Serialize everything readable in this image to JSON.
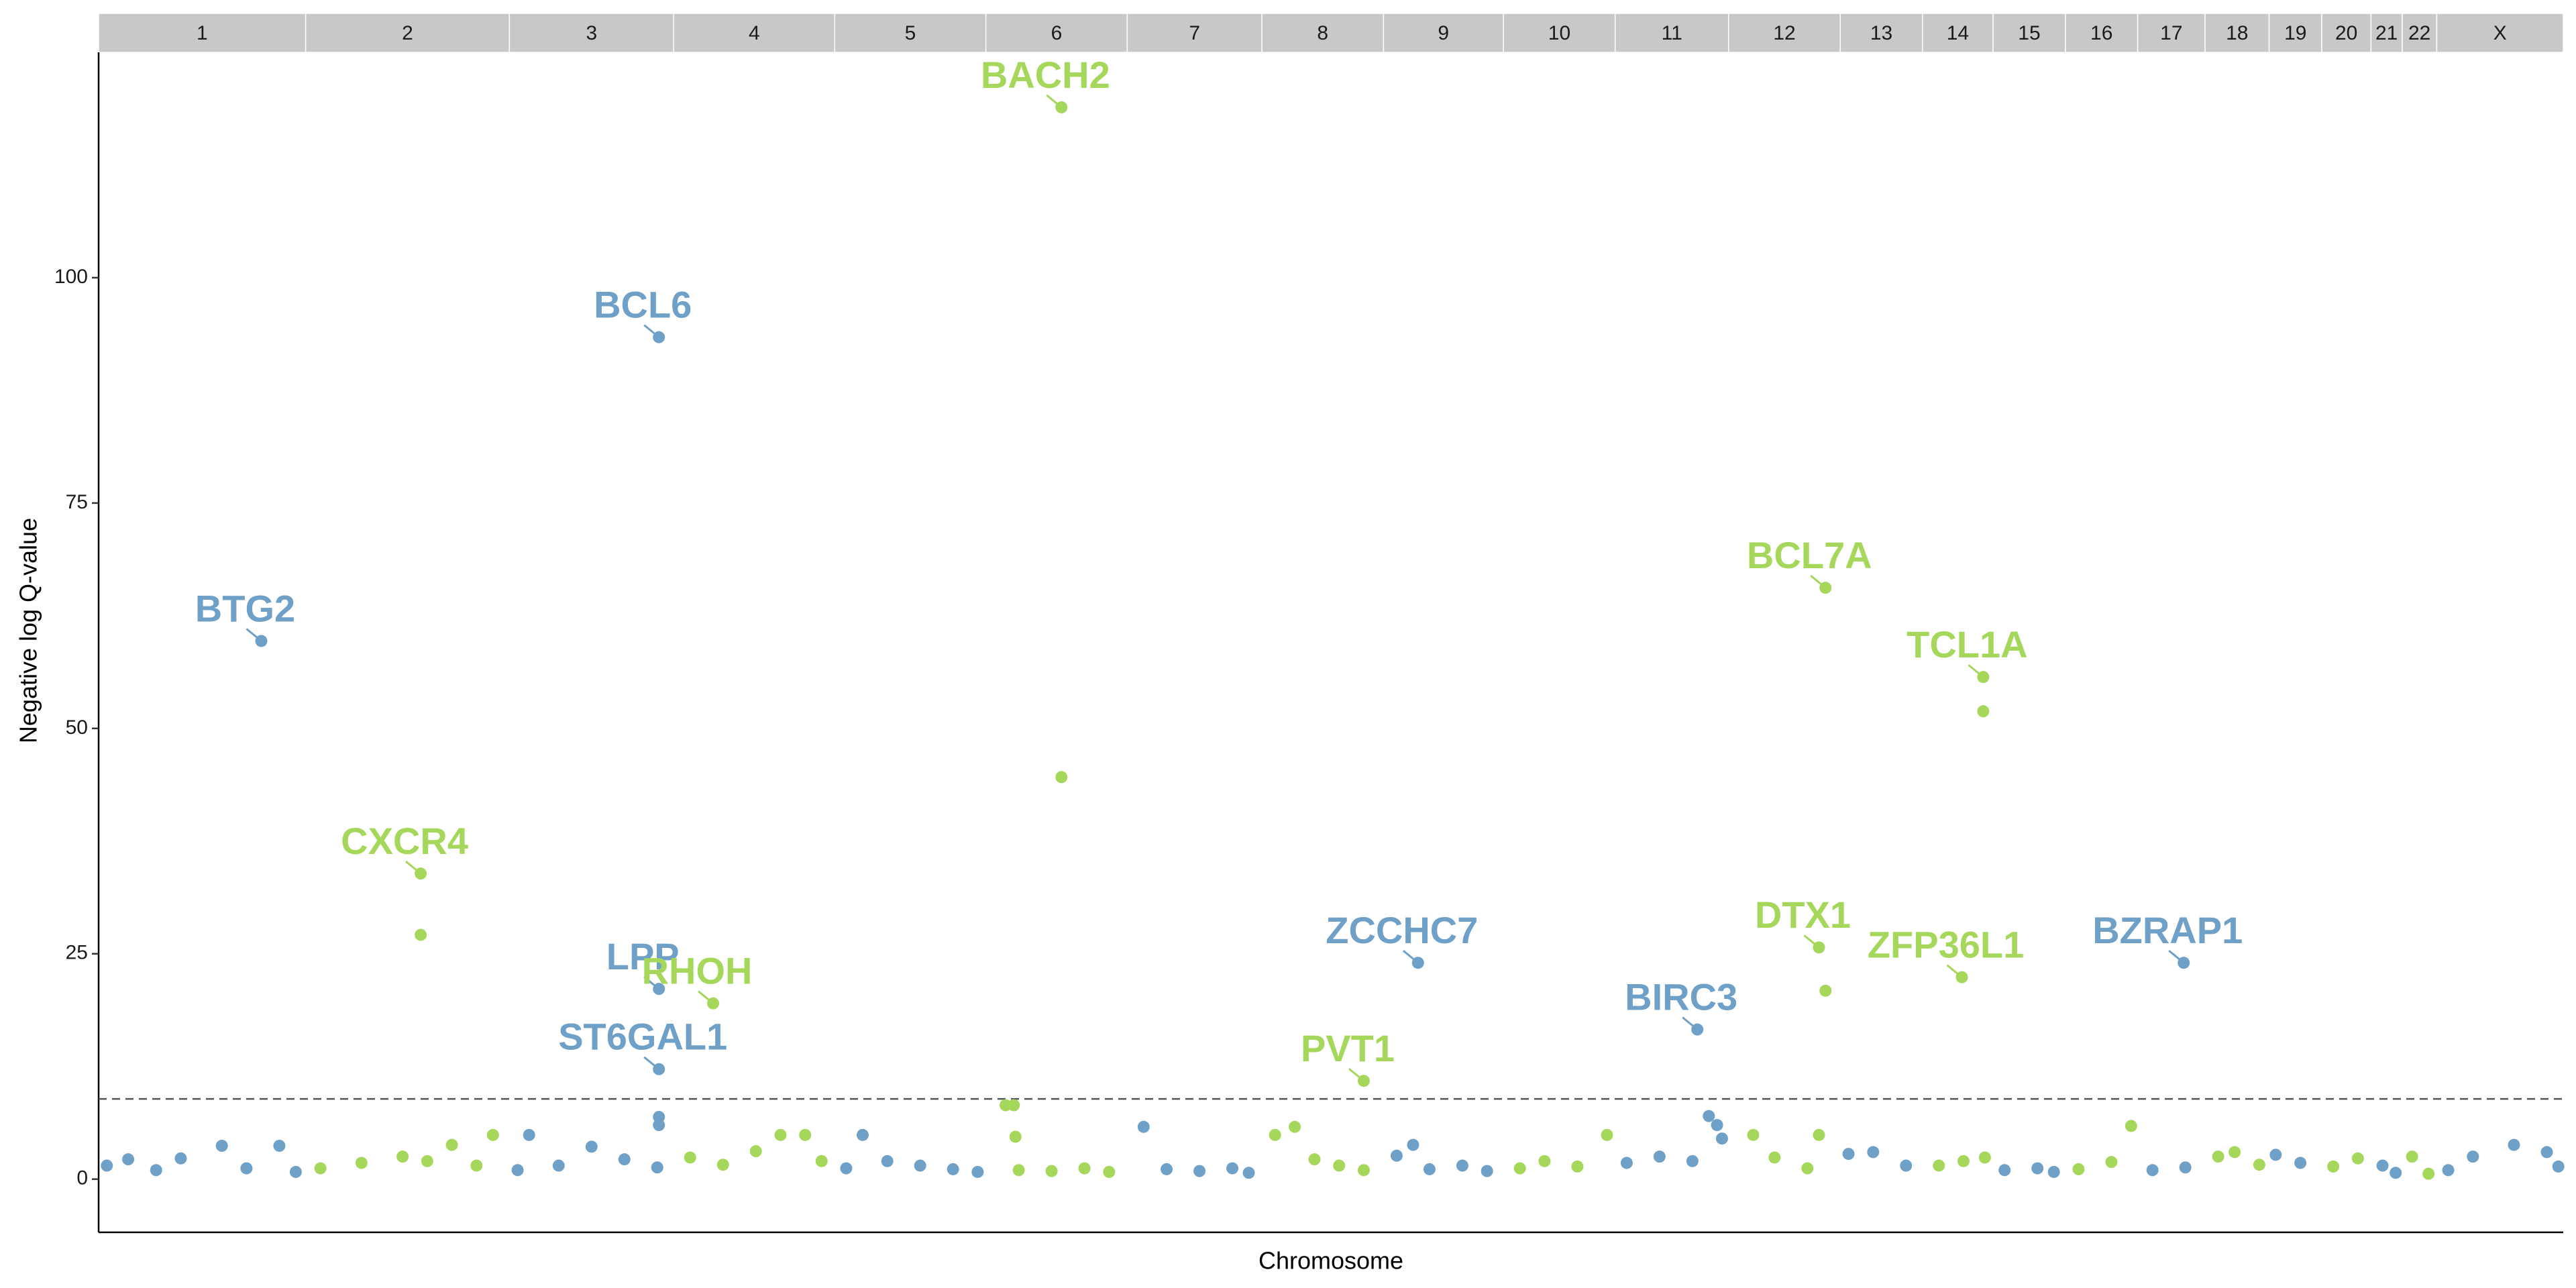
{
  "chart_data": {
    "type": "manhattan",
    "x_label": "Chromosome",
    "y_label": "Negative log Q-value",
    "categories": [
      "1",
      "2",
      "3",
      "4",
      "5",
      "6",
      "7",
      "8",
      "9",
      "10",
      "11",
      "12",
      "13",
      "14",
      "15",
      "16",
      "17",
      "18",
      "19",
      "20",
      "21",
      "22",
      "X"
    ],
    "category_bounds": [
      0,
      126,
      250,
      350,
      448,
      540,
      626,
      708,
      782,
      855,
      923,
      992,
      1060,
      1110,
      1153,
      1197,
      1241,
      1282,
      1321,
      1353,
      1383,
      1402,
      1423,
      1500
    ],
    "colors": [
      "#6fa0c8",
      "#a5d75a"
    ],
    "xlim": [
      0,
      1500
    ],
    "ylim": [
      -5.9,
      125
    ],
    "yticks": [
      0,
      25,
      50,
      75,
      100
    ],
    "threshold": 8.9,
    "x": [
      5,
      18,
      35,
      50,
      75,
      90,
      110,
      120,
      135,
      160,
      185,
      200,
      215,
      230,
      240,
      255,
      262,
      280,
      300,
      320,
      340,
      341,
      341,
      360,
      380,
      400,
      415,
      430,
      440,
      455,
      465,
      480,
      500,
      520,
      535,
      552,
      557,
      558,
      560,
      580,
      586,
      600,
      615,
      636,
      650,
      670,
      690,
      700,
      716,
      728,
      740,
      755,
      770,
      790,
      800,
      810,
      830,
      845,
      865,
      880,
      900,
      918,
      930,
      950,
      970,
      980,
      985,
      988,
      1007,
      1020,
      1040,
      1047,
      1051,
      1065,
      1080,
      1100,
      1120,
      1135,
      1147,
      1148,
      1160,
      1180,
      1190,
      1205,
      1225,
      1237,
      1250,
      1270,
      1290,
      1300,
      1315,
      1325,
      1340,
      1360,
      1375,
      1390,
      1398,
      1408,
      1418,
      1430,
      1445,
      1470,
      1490,
      1497,
      196
    ],
    "y": [
      1.5,
      2.2,
      1.0,
      2.3,
      3.7,
      1.2,
      3.7,
      0.8,
      1.2,
      1.8,
      2.5,
      2.0,
      3.8,
      1.5,
      4.9,
      1.0,
      4.9,
      1.5,
      3.6,
      2.2,
      1.3,
      6.9,
      6.0,
      2.4,
      1.6,
      3.1,
      4.9,
      4.9,
      2.0,
      1.2,
      4.9,
      2.0,
      1.5,
      1.1,
      0.8,
      8.2,
      8.2,
      4.7,
      1.0,
      0.9,
      44.6,
      1.2,
      0.8,
      5.8,
      1.1,
      0.9,
      1.2,
      0.7,
      4.9,
      5.8,
      2.2,
      1.5,
      1.0,
      2.6,
      3.8,
      1.1,
      1.5,
      0.9,
      1.2,
      2.0,
      1.4,
      4.9,
      1.8,
      2.5,
      2.0,
      7.0,
      6.0,
      4.5,
      4.9,
      2.4,
      1.2,
      4.9,
      20.9,
      2.8,
      3.0,
      1.5,
      1.5,
      2.0,
      51.9,
      2.4,
      1.0,
      1.2,
      0.8,
      1.1,
      1.9,
      5.9,
      1.0,
      1.3,
      2.5,
      3.0,
      1.6,
      2.7,
      1.8,
      1.4,
      2.3,
      1.5,
      0.7,
      2.5,
      0.6,
      1.0,
      2.5,
      3.8,
      3.0,
      1.4,
      27.1
    ],
    "annotations": [
      {
        "label": "BTG2",
        "x": 99,
        "y": 59.7
      },
      {
        "label": "CXCR4",
        "x": 196,
        "y": 33.9
      },
      {
        "label": "BCL6",
        "x": 341,
        "y": 93.4
      },
      {
        "label": "LPP",
        "x": 341,
        "y": 21.1
      },
      {
        "label": "ST6GAL1",
        "x": 341,
        "y": 12.2
      },
      {
        "label": "RHOH",
        "x": 374,
        "y": 19.5
      },
      {
        "label": "BACH2",
        "x": 586,
        "y": 118.9
      },
      {
        "label": "PVT1",
        "x": 770,
        "y": 10.9
      },
      {
        "label": "ZCCHC7",
        "x": 803,
        "y": 24.0
      },
      {
        "label": "BIRC3",
        "x": 973,
        "y": 16.6
      },
      {
        "label": "DTX1",
        "x": 1047,
        "y": 25.7
      },
      {
        "label": "BCL7A",
        "x": 1051,
        "y": 65.6
      },
      {
        "label": "TCL1A",
        "x": 1147,
        "y": 55.7
      },
      {
        "label": "ZFP36L1",
        "x": 1134,
        "y": 22.4
      },
      {
        "label": "BZRAP1",
        "x": 1269,
        "y": 24.0
      }
    ]
  }
}
